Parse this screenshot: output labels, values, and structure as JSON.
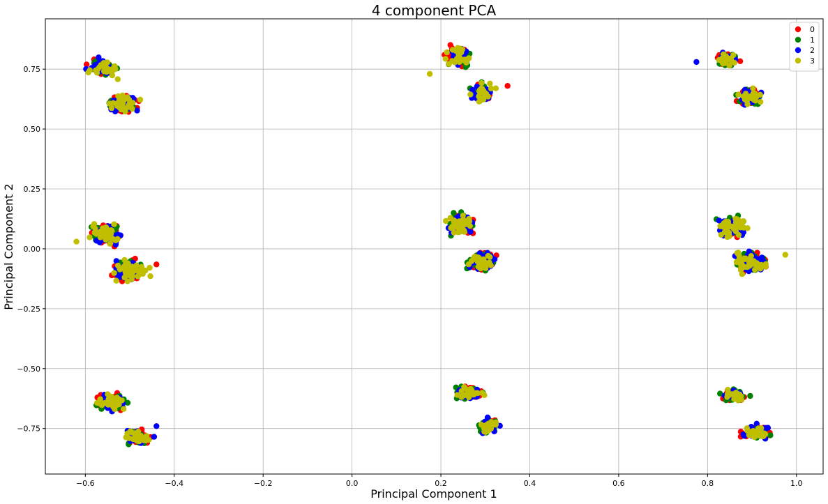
{
  "chart_data": {
    "type": "scatter",
    "title": "4 component PCA",
    "xlabel": "Principal Component 1",
    "ylabel": "Principal Component 2",
    "xlim": [
      -0.69,
      1.06
    ],
    "ylim": [
      -0.94,
      0.96
    ],
    "xticks": [
      -0.6,
      -0.4,
      -0.2,
      0.0,
      0.2,
      0.4,
      0.6,
      0.8,
      1.0
    ],
    "xtick_labels": [
      "−0.6",
      "−0.4",
      "−0.2",
      "0.0",
      "0.2",
      "0.4",
      "0.6",
      "0.8",
      "1.0"
    ],
    "yticks": [
      -0.75,
      -0.5,
      -0.25,
      0.0,
      0.25,
      0.5,
      0.75
    ],
    "ytick_labels": [
      "−0.75",
      "−0.50",
      "−0.25",
      "0.00",
      "0.25",
      "0.50",
      "0.75"
    ],
    "grid": true,
    "legend_position": "top-right",
    "series": [
      {
        "name": "0",
        "color": "#ff0000"
      },
      {
        "name": "1",
        "color": "#008000"
      },
      {
        "name": "2",
        "color": "#0000ff"
      },
      {
        "name": "3",
        "color": "#bfbf00"
      }
    ],
    "clusters": [
      {
        "x": -0.56,
        "y": 0.755,
        "sx": 0.02,
        "sy": 0.022,
        "n": 28
      },
      {
        "x": -0.515,
        "y": 0.605,
        "sx": 0.022,
        "sy": 0.022,
        "n": 28
      },
      {
        "x": -0.555,
        "y": 0.06,
        "sx": 0.022,
        "sy": 0.028,
        "n": 40
      },
      {
        "x": -0.5,
        "y": -0.09,
        "sx": 0.022,
        "sy": 0.028,
        "n": 40
      },
      {
        "x": -0.545,
        "y": -0.64,
        "sx": 0.022,
        "sy": 0.022,
        "n": 28
      },
      {
        "x": -0.48,
        "y": -0.785,
        "sx": 0.018,
        "sy": 0.022,
        "n": 24
      },
      {
        "x": 0.24,
        "y": 0.805,
        "sx": 0.018,
        "sy": 0.025,
        "n": 24
      },
      {
        "x": 0.29,
        "y": 0.65,
        "sx": 0.018,
        "sy": 0.022,
        "n": 22
      },
      {
        "x": 0.245,
        "y": 0.105,
        "sx": 0.018,
        "sy": 0.028,
        "n": 36
      },
      {
        "x": 0.29,
        "y": -0.055,
        "sx": 0.02,
        "sy": 0.025,
        "n": 36
      },
      {
        "x": 0.265,
        "y": -0.6,
        "sx": 0.02,
        "sy": 0.018,
        "n": 22
      },
      {
        "x": 0.305,
        "y": -0.74,
        "sx": 0.015,
        "sy": 0.022,
        "n": 20
      },
      {
        "x": 0.845,
        "y": 0.79,
        "sx": 0.016,
        "sy": 0.02,
        "n": 22
      },
      {
        "x": 0.895,
        "y": 0.635,
        "sx": 0.018,
        "sy": 0.022,
        "n": 22
      },
      {
        "x": 0.855,
        "y": 0.09,
        "sx": 0.02,
        "sy": 0.028,
        "n": 36
      },
      {
        "x": 0.895,
        "y": -0.055,
        "sx": 0.022,
        "sy": 0.028,
        "n": 36
      },
      {
        "x": 0.86,
        "y": -0.61,
        "sx": 0.018,
        "sy": 0.018,
        "n": 20
      },
      {
        "x": 0.91,
        "y": -0.765,
        "sx": 0.02,
        "sy": 0.02,
        "n": 24
      }
    ],
    "outliers": [
      {
        "x": 0.175,
        "y": 0.73,
        "series": 3
      },
      {
        "x": 0.35,
        "y": 0.68,
        "series": 0
      },
      {
        "x": 0.775,
        "y": 0.78,
        "series": 2
      },
      {
        "x": 0.975,
        "y": -0.025,
        "series": 3
      },
      {
        "x": -0.44,
        "y": -0.065,
        "series": 0
      },
      {
        "x": -0.44,
        "y": -0.74,
        "series": 2
      },
      {
        "x": -0.62,
        "y": 0.03,
        "series": 3
      }
    ]
  }
}
